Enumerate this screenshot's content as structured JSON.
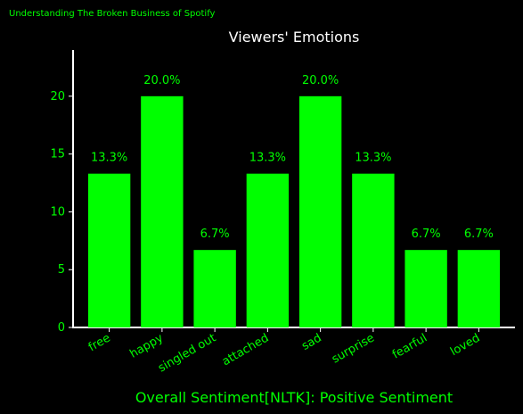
{
  "header": {
    "source": "Understanding The Broken Business of Spotify"
  },
  "colors": {
    "background": "#000000",
    "bar": "#00ff00",
    "text": "#00ff00",
    "title": "#ffffff",
    "axis": "#ffffff"
  },
  "chart_data": {
    "type": "bar",
    "title": "Viewers' Emotions",
    "xlabel": "Overall Sentiment[NLTK]: Positive Sentiment",
    "ylabel": "",
    "categories": [
      "free",
      "happy",
      "singled out",
      "attached",
      "sad",
      "surprise",
      "fearful",
      "loved"
    ],
    "values": [
      13.3,
      20.0,
      6.7,
      13.3,
      20.0,
      13.3,
      6.7,
      6.7
    ],
    "data_labels": [
      "13.3%",
      "20.0%",
      "6.7%",
      "13.3%",
      "20.0%",
      "13.3%",
      "6.7%",
      "6.7%"
    ],
    "ylim": [
      0,
      24
    ],
    "yticks": [
      0,
      5,
      10,
      15,
      20
    ],
    "grid": false,
    "legend": "none"
  }
}
